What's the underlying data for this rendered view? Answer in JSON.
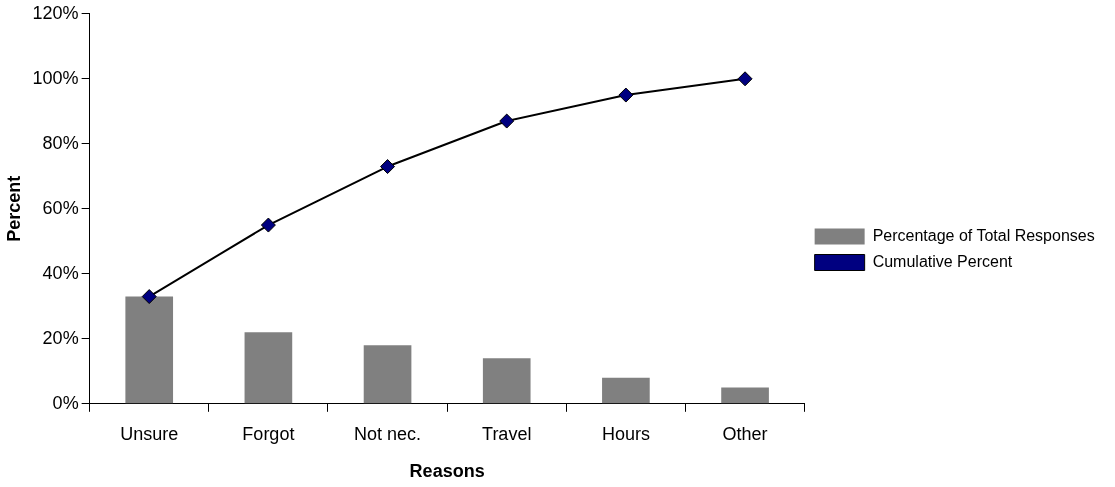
{
  "chart_data": {
    "type": "bar",
    "xlabel": "Reasons",
    "ylabel": "Percent",
    "categories": [
      "Unsure",
      "Forgot",
      "Not nec.",
      "Travel",
      "Hours",
      "Other"
    ],
    "series": [
      {
        "name": "Percentage of Total Responses",
        "color": "#808080",
        "values": [
          33,
          22,
          18,
          14,
          8,
          5
        ]
      },
      {
        "name": "Cumulative Percent",
        "type": "line",
        "color": "#000080",
        "values": [
          33,
          55,
          73,
          87,
          95,
          100
        ]
      }
    ],
    "ylim": [
      0,
      120
    ],
    "yticks": [
      {
        "value": 0,
        "label": "0%"
      },
      {
        "value": 20,
        "label": "20%"
      },
      {
        "value": 40,
        "label": "40%"
      },
      {
        "value": 60,
        "label": "60%"
      },
      {
        "value": 80,
        "label": "80%"
      },
      {
        "value": 100,
        "label": "100%"
      },
      {
        "value": 120,
        "label": "120%"
      }
    ],
    "grid": false,
    "legend": "right",
    "marker": "diamond",
    "line_style": "solid"
  }
}
